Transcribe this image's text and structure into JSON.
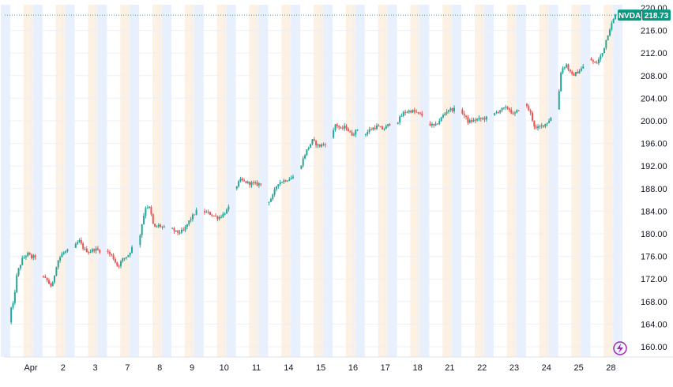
{
  "chart_data": {
    "type": "candlestick",
    "symbol": "NVDA",
    "last_price": "218.73",
    "ylim": [
      158,
      220
    ],
    "y_ticks": [
      "216.00",
      "212.00",
      "208.00",
      "204.00",
      "200.00",
      "196.00",
      "192.00",
      "188.00",
      "184.00",
      "180.00",
      "176.00",
      "172.00",
      "168.00",
      "164.00",
      "160.00"
    ],
    "x_ticks": [
      "Apr",
      "2",
      "3",
      "7",
      "8",
      "9",
      "10",
      "11",
      "14",
      "15",
      "16",
      "17",
      "18",
      "21",
      "22",
      "23",
      "24",
      "25",
      "28"
    ],
    "sessions": [
      {
        "day": "Apr",
        "path": [
          [
            0.0,
            164.3
          ],
          [
            0.03,
            166.5
          ],
          [
            0.15,
            167.5
          ],
          [
            0.3,
            173.0
          ],
          [
            0.5,
            175.5
          ],
          [
            0.7,
            176.5
          ],
          [
            0.85,
            175.8
          ],
          [
            1.0,
            176.0
          ]
        ]
      },
      {
        "day": "2",
        "path": [
          [
            0.0,
            172.5
          ],
          [
            0.2,
            171.8
          ],
          [
            0.4,
            170.5
          ],
          [
            0.6,
            175.0
          ],
          [
            0.8,
            176.5
          ],
          [
            1.0,
            177.0
          ]
        ]
      },
      {
        "day": "3",
        "path": [
          [
            0.0,
            177.5
          ],
          [
            0.2,
            178.8
          ],
          [
            0.4,
            177.2
          ],
          [
            0.6,
            176.8
          ],
          [
            0.8,
            177.3
          ],
          [
            1.0,
            177.0
          ]
        ]
      },
      {
        "day": "7",
        "path": [
          [
            0.0,
            177.0
          ],
          [
            0.25,
            176.0
          ],
          [
            0.45,
            174.2
          ],
          [
            0.65,
            175.5
          ],
          [
            0.85,
            176.2
          ],
          [
            1.0,
            177.5
          ]
        ]
      },
      {
        "day": "8",
        "path": [
          [
            0.0,
            178.0
          ],
          [
            0.15,
            182.0
          ],
          [
            0.3,
            185.0
          ],
          [
            0.45,
            184.5
          ],
          [
            0.6,
            181.0
          ],
          [
            0.8,
            181.5
          ],
          [
            1.0,
            181.0
          ]
        ]
      },
      {
        "day": "9",
        "path": [
          [
            0.0,
            181.0
          ],
          [
            0.25,
            180.2
          ],
          [
            0.5,
            180.5
          ],
          [
            0.75,
            182.5
          ],
          [
            1.0,
            184.0
          ]
        ]
      },
      {
        "day": "10",
        "path": [
          [
            0.0,
            184.0
          ],
          [
            0.3,
            183.5
          ],
          [
            0.6,
            182.8
          ],
          [
            0.8,
            183.5
          ],
          [
            1.0,
            184.5
          ]
        ]
      },
      {
        "day": "11",
        "path": [
          [
            0.0,
            188.0
          ],
          [
            0.2,
            189.5
          ],
          [
            0.5,
            189.0
          ],
          [
            0.8,
            188.8
          ],
          [
            1.0,
            188.8
          ]
        ]
      },
      {
        "day": "14",
        "path": [
          [
            0.0,
            185.5
          ],
          [
            0.2,
            186.5
          ],
          [
            0.4,
            189.0
          ],
          [
            0.7,
            189.5
          ],
          [
            1.0,
            190.0
          ]
        ]
      },
      {
        "day": "15",
        "path": [
          [
            0.0,
            191.5
          ],
          [
            0.25,
            194.5
          ],
          [
            0.5,
            196.5
          ],
          [
            0.75,
            195.5
          ],
          [
            1.0,
            196.0
          ]
        ]
      },
      {
        "day": "16",
        "path": [
          [
            0.0,
            197.0
          ],
          [
            0.15,
            199.5
          ],
          [
            0.35,
            198.5
          ],
          [
            0.55,
            199.0
          ],
          [
            0.75,
            197.5
          ],
          [
            0.9,
            198.0
          ],
          [
            1.0,
            198.5
          ]
        ]
      },
      {
        "day": "17",
        "path": [
          [
            0.0,
            197.5
          ],
          [
            0.25,
            198.5
          ],
          [
            0.5,
            199.0
          ],
          [
            0.75,
            198.5
          ],
          [
            1.0,
            199.5
          ]
        ]
      },
      {
        "day": "18",
        "path": [
          [
            0.0,
            199.5
          ],
          [
            0.3,
            201.5
          ],
          [
            0.6,
            201.8
          ],
          [
            1.0,
            201.0
          ]
        ]
      },
      {
        "day": "21",
        "path": [
          [
            0.0,
            199.5
          ],
          [
            0.25,
            199.0
          ],
          [
            0.5,
            200.5
          ],
          [
            0.75,
            202.0
          ],
          [
            1.0,
            202.0
          ]
        ]
      },
      {
        "day": "22",
        "path": [
          [
            0.0,
            202.0
          ],
          [
            0.3,
            199.8
          ],
          [
            0.6,
            200.2
          ],
          [
            1.0,
            200.5
          ]
        ]
      },
      {
        "day": "23",
        "path": [
          [
            0.0,
            201.0
          ],
          [
            0.3,
            202.0
          ],
          [
            0.6,
            202.3
          ],
          [
            0.8,
            201.0
          ],
          [
            1.0,
            202.0
          ]
        ]
      },
      {
        "day": "24",
        "path": [
          [
            0.0,
            203.0
          ],
          [
            0.2,
            201.5
          ],
          [
            0.4,
            198.5
          ],
          [
            0.6,
            199.0
          ],
          [
            0.8,
            199.5
          ],
          [
            1.0,
            200.5
          ]
        ]
      },
      {
        "day": "25",
        "path": [
          [
            0.0,
            202.0
          ],
          [
            0.15,
            209.0
          ],
          [
            0.35,
            210.0
          ],
          [
            0.55,
            208.0
          ],
          [
            0.75,
            208.5
          ],
          [
            1.0,
            209.5
          ]
        ]
      },
      {
        "day": "28",
        "path": [
          [
            0.0,
            211.0
          ],
          [
            0.25,
            210.0
          ],
          [
            0.5,
            212.0
          ],
          [
            0.75,
            216.0
          ],
          [
            1.0,
            218.7
          ]
        ]
      }
    ],
    "colors": {
      "up": "#26a69a",
      "down": "#ef5350",
      "grid": "#eef0f3",
      "axis_text": "#131722",
      "session_premarket": "#e8f0fd",
      "session_afterhours": "#fdf1e4",
      "label_bg": "#089981",
      "price_line": "#26a69a",
      "logo": "#9c27b0"
    }
  }
}
